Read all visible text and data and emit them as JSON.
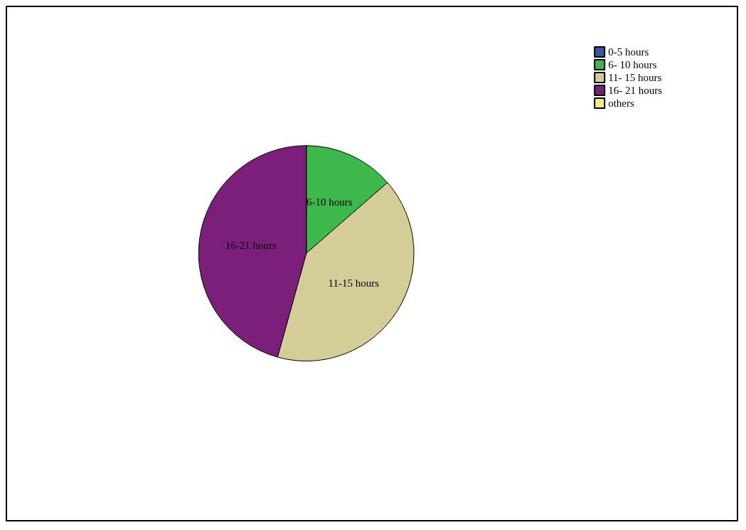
{
  "chart_data": {
    "type": "pie",
    "categories": [
      "0-5 hours",
      "6- 10 hours",
      "11- 15 hours",
      "16- 21 hours",
      "others"
    ],
    "values": [
      0,
      13.6,
      40.7,
      45.7,
      0
    ],
    "colors": [
      "#3b55a6",
      "#3cb94a",
      "#d5cd98",
      "#7b1f7a",
      "#f3ef7a"
    ],
    "value_labels": [
      null,
      "6-10 hours",
      "11-15 hours",
      "16-21 hours",
      null
    ],
    "legend": "top right"
  }
}
